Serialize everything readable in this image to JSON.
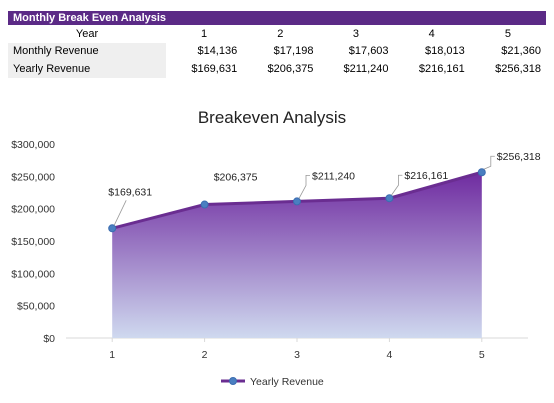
{
  "table": {
    "title": "Monthly Break Even Analysis",
    "year_header": "Year",
    "years": [
      "1",
      "2",
      "3",
      "4",
      "5"
    ],
    "rows": [
      {
        "label": "Monthly Revenue",
        "values": [
          "$14,136",
          "$17,198",
          "$17,603",
          "$18,013",
          "$21,360"
        ]
      },
      {
        "label": "Yearly Revenue",
        "values": [
          "$169,631",
          "$206,375",
          "$211,240",
          "$216,161",
          "$256,318"
        ]
      }
    ]
  },
  "chart_data": {
    "type": "area",
    "title": "Breakeven Analysis",
    "xlabel": "",
    "ylabel": "",
    "categories": [
      "1",
      "2",
      "3",
      "4",
      "5"
    ],
    "series": [
      {
        "name": "Yearly Revenue",
        "values": [
          169631,
          206375,
          211240,
          216161,
          256318
        ],
        "data_labels": [
          "$169,631",
          "$206,375",
          "$211,240",
          "$216,161",
          "$256,318"
        ]
      }
    ],
    "ylim": [
      0,
      300000
    ],
    "yticks": [
      0,
      50000,
      100000,
      150000,
      200000,
      250000,
      300000
    ],
    "ytick_labels": [
      "$0",
      "$50,000",
      "$100,000",
      "$150,000",
      "$200,000",
      "$250,000",
      "$300,000"
    ],
    "grid": false,
    "legend_position": "bottom",
    "colors": {
      "line": "#6a2d91",
      "marker": "#4a7fc1",
      "fill_top": "#6f2ba0",
      "fill_bottom": "#cfd9ef",
      "header": "#5b2a86"
    }
  }
}
